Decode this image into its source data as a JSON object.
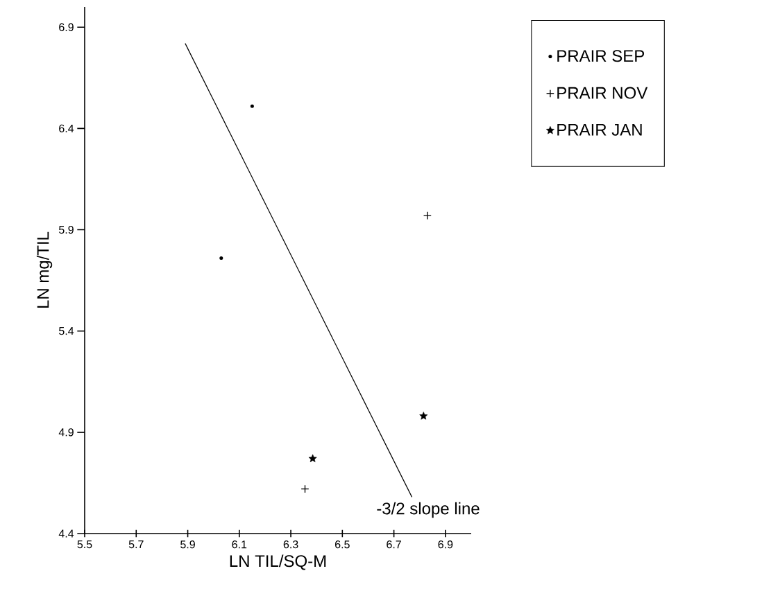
{
  "chart_data": {
    "type": "scatter",
    "xlabel": "LN TIL/SQ-M",
    "ylabel": "LN mg/TIL",
    "xlim": [
      5.5,
      7.0
    ],
    "xticks": [
      5.5,
      5.7,
      5.9,
      6.1,
      6.3,
      6.5,
      6.7,
      6.9
    ],
    "ylim": [
      4.4,
      7.0
    ],
    "yticks": [
      4.4,
      4.9,
      5.4,
      5.9,
      6.4,
      6.9
    ],
    "grid": false,
    "legend": "right",
    "series": [
      {
        "name": "PRAIR SEP",
        "type": "scatter",
        "marker": "circle",
        "color": "#000000",
        "x": [
          6.15,
          6.03
        ],
        "values": [
          6.51,
          5.76
        ]
      },
      {
        "name": "PRAIR NOV",
        "type": "scatter",
        "marker": "cross",
        "color": "#000000",
        "x": [
          6.83,
          6.355
        ],
        "values": [
          5.97,
          4.62
        ]
      },
      {
        "name": "PRAIR JAN",
        "type": "scatter",
        "marker": "star",
        "color": "#000000",
        "x": [
          6.385,
          6.815
        ],
        "values": [
          4.77,
          4.98
        ]
      },
      {
        "type": "line",
        "marker": "none",
        "color": "#000000",
        "x": [
          5.89,
          6.77
        ],
        "values": [
          6.82,
          4.58
        ]
      }
    ],
    "annotations": [
      {
        "text": "-3/2 slope line",
        "x": 6.77,
        "y": 4.58
      }
    ]
  }
}
